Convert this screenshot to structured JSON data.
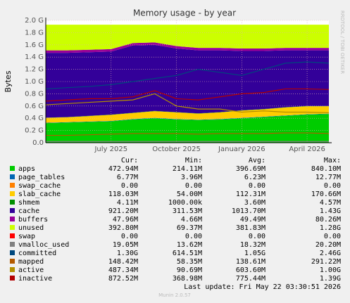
{
  "chart_data": {
    "type": "area",
    "title": "Memory usage - by year",
    "ylabel": "Bytes",
    "side_text": "RRDTOOL / TOBI OETIKER",
    "footer": "Last update: Fri May 22 03:30:51 2026",
    "version": "Munin 2.0.57",
    "x": [
      "2025-04",
      "2025-05",
      "2025-06",
      "2025-07",
      "2025-08",
      "2025-09",
      "2025-10",
      "2025-11",
      "2025-12",
      "2026-01",
      "2026-02",
      "2026-03",
      "2026-04",
      "2026-05"
    ],
    "xlim": [
      "2025-04",
      "2026-05"
    ],
    "xticks": [
      {
        "value": "2025-07",
        "label": "July 2025"
      },
      {
        "value": "2025-10",
        "label": "October 2025"
      },
      {
        "value": "2026-01",
        "label": "January 2026"
      },
      {
        "value": "2026-04",
        "label": "April 2026"
      }
    ],
    "ylim": [
      0,
      2.0
    ],
    "yticks": [
      {
        "value": 0,
        "label": "0.0"
      },
      {
        "value": 0.2,
        "label": "0.2 G"
      },
      {
        "value": 0.4,
        "label": "0.4 G"
      },
      {
        "value": 0.6,
        "label": "0.6 G"
      },
      {
        "value": 0.8,
        "label": "0.8 G"
      },
      {
        "value": 1.0,
        "label": "1.0 G"
      },
      {
        "value": 1.2,
        "label": "1.2 G"
      },
      {
        "value": 1.4,
        "label": "1.4 G"
      },
      {
        "value": 1.6,
        "label": "1.6 G"
      },
      {
        "value": 1.8,
        "label": "1.8 G"
      },
      {
        "value": 2.0,
        "label": "2.0 G"
      }
    ],
    "grid": true,
    "stat_headers": [
      "Cur:",
      "Min:",
      "Avg:",
      "Max:"
    ],
    "series": [
      {
        "name": "apps",
        "color": "#00CC00",
        "draw": "stack",
        "values": [
          0.32,
          0.33,
          0.34,
          0.35,
          0.38,
          0.4,
          0.38,
          0.37,
          0.38,
          0.4,
          0.42,
          0.44,
          0.46,
          0.47
        ],
        "stats": [
          "472.94M",
          "214.11M",
          "396.69M",
          "840.10M"
        ]
      },
      {
        "name": "page_tables",
        "color": "#0066B3",
        "draw": "stack",
        "values": [
          0.006,
          0.006,
          0.006,
          0.006,
          0.006,
          0.006,
          0.006,
          0.006,
          0.006,
          0.006,
          0.006,
          0.006,
          0.006,
          0.006
        ],
        "stats": [
          "6.77M",
          "3.96M",
          "6.23M",
          "12.77M"
        ]
      },
      {
        "name": "swap_cache",
        "color": "#FF8000",
        "draw": "stack",
        "values": [
          0,
          0,
          0,
          0,
          0,
          0,
          0,
          0,
          0,
          0,
          0,
          0,
          0,
          0
        ],
        "stats": [
          "0.00",
          "0.00",
          "0.00",
          "0.00"
        ]
      },
      {
        "name": "slab_cache",
        "color": "#FFCC00",
        "draw": "stack",
        "values": [
          0.08,
          0.08,
          0.09,
          0.1,
          0.1,
          0.11,
          0.11,
          0.1,
          0.11,
          0.12,
          0.12,
          0.13,
          0.13,
          0.12
        ],
        "stats": [
          "118.03M",
          "54.00M",
          "112.31M",
          "170.66M"
        ]
      },
      {
        "name": "shmem",
        "color": "#008F00",
        "draw": "stack",
        "values": [
          0.004,
          0.004,
          0.004,
          0.004,
          0.004,
          0.004,
          0.004,
          0.004,
          0.004,
          0.004,
          0.004,
          0.004,
          0.004,
          0.004
        ],
        "stats": [
          "4.11M",
          "1000.00k",
          "3.60M",
          "4.57M"
        ]
      },
      {
        "name": "cache",
        "color": "#330099",
        "draw": "stack",
        "values": [
          1.06,
          1.05,
          1.04,
          1.03,
          1.1,
          1.08,
          1.04,
          1.03,
          1.01,
          0.97,
          0.95,
          0.93,
          0.91,
          0.91
        ],
        "stats": [
          "921.20M",
          "311.53M",
          "1013.70M",
          "1.43G"
        ]
      },
      {
        "name": "buffers",
        "color": "#990099",
        "draw": "stack",
        "values": [
          0.04,
          0.04,
          0.04,
          0.04,
          0.04,
          0.04,
          0.04,
          0.04,
          0.04,
          0.04,
          0.04,
          0.04,
          0.04,
          0.04
        ],
        "stats": [
          "47.96M",
          "4.66M",
          "49.49M",
          "80.26M"
        ]
      },
      {
        "name": "unused",
        "color": "#CCFF00",
        "draw": "stack",
        "values": [
          0.42,
          0.42,
          0.41,
          0.4,
          0.3,
          0.29,
          0.35,
          0.38,
          0.38,
          0.39,
          0.39,
          0.38,
          0.38,
          0.38
        ],
        "stats": [
          "392.80M",
          "69.37M",
          "381.83M",
          "1.28G"
        ]
      },
      {
        "name": "swap",
        "color": "#FF0000",
        "draw": "stack",
        "values": [
          0,
          0,
          0,
          0,
          0,
          0,
          0,
          0,
          0,
          0,
          0,
          0,
          0,
          0
        ],
        "stats": [
          "0.00",
          "0.00",
          "0.00",
          "0.00"
        ]
      },
      {
        "name": "vmalloc_used",
        "color": "#808080",
        "draw": "line",
        "values": [
          0.02,
          0.02,
          0.02,
          0.02,
          0.02,
          0.02,
          0.02,
          0.02,
          0.02,
          0.02,
          0.02,
          0.02,
          0.02,
          0.02
        ],
        "stats": [
          "19.05M",
          "13.62M",
          "18.32M",
          "20.20M"
        ]
      },
      {
        "name": "committed",
        "color": "#00487D",
        "draw": "line",
        "values": [
          0.88,
          0.9,
          0.92,
          0.95,
          1.0,
          1.05,
          1.1,
          1.2,
          1.15,
          1.1,
          1.2,
          1.3,
          1.32,
          1.3
        ],
        "stats": [
          "1.30G",
          "614.51M",
          "1.05G",
          "2.46G"
        ]
      },
      {
        "name": "mapped",
        "color": "#B35A00",
        "draw": "line",
        "values": [
          0.12,
          0.12,
          0.13,
          0.14,
          0.15,
          0.15,
          0.15,
          0.14,
          0.15,
          0.15,
          0.15,
          0.16,
          0.16,
          0.15
        ],
        "stats": [
          "148.42M",
          "58.35M",
          "138.61M",
          "291.22M"
        ]
      },
      {
        "name": "active",
        "color": "#B38F00",
        "draw": "line",
        "values": [
          0.62,
          0.64,
          0.66,
          0.68,
          0.7,
          0.8,
          0.6,
          0.55,
          0.55,
          0.5,
          0.52,
          0.5,
          0.5,
          0.49
        ],
        "stats": [
          "487.34M",
          "90.69M",
          "603.60M",
          "1.00G"
        ]
      },
      {
        "name": "inactive",
        "color": "#B30000",
        "draw": "line",
        "values": [
          0.68,
          0.7,
          0.72,
          0.72,
          0.75,
          0.85,
          0.72,
          0.7,
          0.75,
          0.8,
          0.82,
          0.88,
          0.88,
          0.87
        ],
        "stats": [
          "872.52M",
          "368.98M",
          "775.44M",
          "1.39G"
        ]
      }
    ]
  }
}
